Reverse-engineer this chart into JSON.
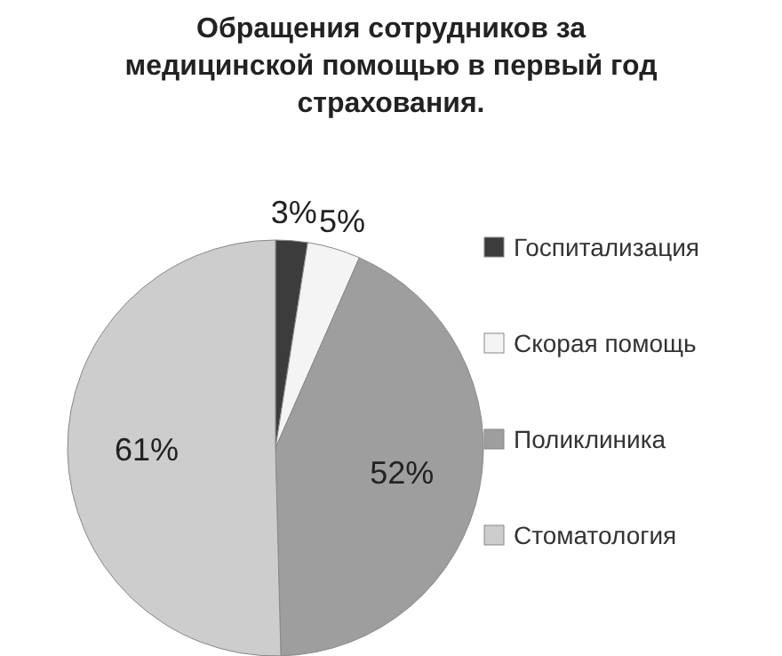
{
  "chart_data": {
    "type": "pie",
    "title": "Обращения сотрудников за медицинской помощью в первый год страхования.",
    "categories": [
      "Госпитализация",
      "Скорая помощь",
      "Поликлиника",
      "Стоматология"
    ],
    "values": [
      3,
      5,
      52,
      61
    ],
    "colors": [
      "#3c3c3c",
      "#f4f4f4",
      "#9e9e9e",
      "#cdcdcd"
    ],
    "value_labels": [
      "3%",
      "5%",
      "52%",
      "61%"
    ],
    "legend": "right"
  }
}
